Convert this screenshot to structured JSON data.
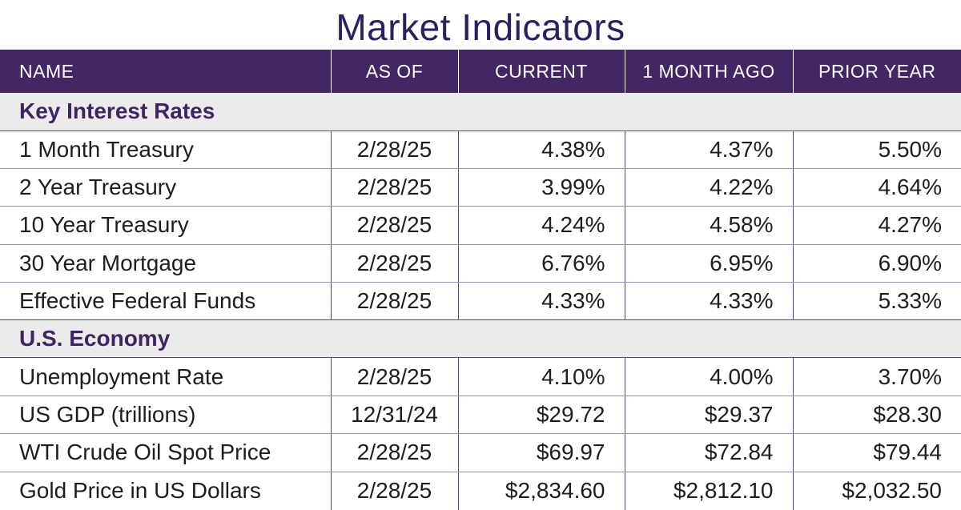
{
  "title": "Market Indicators",
  "header": {
    "name": "NAME",
    "as_of": "AS OF",
    "current": "CURRENT",
    "month_ago": "1 MONTH AGO",
    "prior_year": "PRIOR YEAR"
  },
  "sections": [
    {
      "label": "Key Interest Rates",
      "rows": [
        {
          "name": "1 Month Treasury",
          "as_of": "2/28/25",
          "current": "4.38%",
          "month_ago": "4.37%",
          "prior_year": "5.50%"
        },
        {
          "name": "2 Year Treasury",
          "as_of": "2/28/25",
          "current": "3.99%",
          "month_ago": "4.22%",
          "prior_year": "4.64%"
        },
        {
          "name": "10 Year Treasury",
          "as_of": "2/28/25",
          "current": "4.24%",
          "month_ago": "4.58%",
          "prior_year": "4.27%"
        },
        {
          "name": "30 Year Mortgage",
          "as_of": "2/28/25",
          "current": "6.76%",
          "month_ago": "6.95%",
          "prior_year": "6.90%"
        },
        {
          "name": "Effective Federal Funds",
          "as_of": "2/28/25",
          "current": "4.33%",
          "month_ago": "4.33%",
          "prior_year": "5.33%"
        }
      ]
    },
    {
      "label": "U.S. Economy",
      "rows": [
        {
          "name": "Unemployment Rate",
          "as_of": "2/28/25",
          "current": "4.10%",
          "month_ago": "4.00%",
          "prior_year": "3.70%"
        },
        {
          "name": "US GDP (trillions)",
          "as_of": "12/31/24",
          "current": "$29.72",
          "month_ago": "$29.37",
          "prior_year": "$28.30"
        },
        {
          "name": "WTI Crude Oil Spot Price",
          "as_of": "2/28/25",
          "current": "$69.97",
          "month_ago": "$72.84",
          "prior_year": "$79.44"
        },
        {
          "name": "Gold Price in US Dollars",
          "as_of": "2/28/25",
          "current": "$2,834.60",
          "month_ago": "$2,812.10",
          "prior_year": "$2,032.50"
        }
      ]
    }
  ],
  "colors": {
    "header_bg": "#432764",
    "title": "#2e1f5e",
    "section_text": "#3e2561",
    "section_bg": "#ebebeb"
  }
}
